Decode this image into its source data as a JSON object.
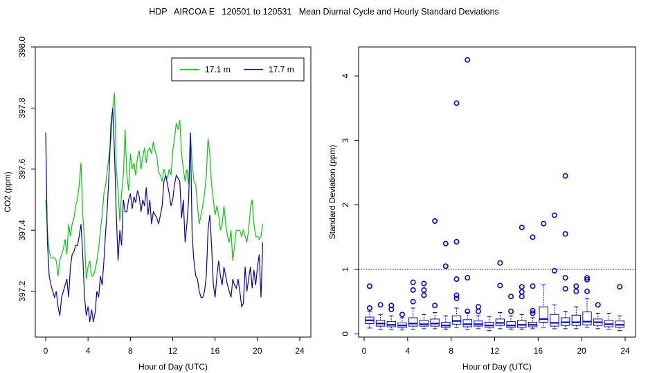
{
  "figure": {
    "title": "HDP   AIRCOA E   120501 to 120531   Mean Diurnal Cycle and Hourly Standard Deviations"
  },
  "colors": {
    "series_17_1": "#00cc00",
    "series_17_7": "#0000cc",
    "box": "#0000ff",
    "axis": "#000000"
  },
  "chart_data": [
    {
      "type": "line",
      "title": "",
      "xlabel": "Hour of Day (UTC)",
      "ylabel": "CO2 (ppm)",
      "xlim": [
        0,
        24
      ],
      "ylim": [
        397.05,
        398.0
      ],
      "xticks": [
        0,
        4,
        8,
        12,
        16,
        20,
        24
      ],
      "yticks": [
        397.2,
        397.4,
        397.6,
        397.8,
        398.0
      ],
      "ytick_labels": [
        "397.2",
        "397.4",
        "397.6",
        "397.8",
        "398.0"
      ],
      "legend": {
        "position": "top-right",
        "entries": [
          "17.1 m",
          "17.7 m"
        ]
      },
      "x_step": 0.1667,
      "series": [
        {
          "name": "17.1 m",
          "color": "#00cc00",
          "values": [
            397.5,
            397.4,
            397.33,
            397.31,
            397.31,
            397.31,
            397.3,
            397.25,
            397.3,
            397.32,
            397.34,
            397.37,
            397.32,
            397.42,
            397.38,
            397.42,
            397.44,
            397.48,
            397.5,
            397.55,
            397.62,
            397.45,
            397.37,
            397.24,
            397.28,
            397.3,
            397.25,
            397.25,
            397.27,
            397.3,
            397.34,
            397.4,
            397.45,
            397.52,
            397.55,
            397.6,
            397.65,
            397.7,
            397.8,
            397.85,
            397.6,
            397.53,
            397.43,
            397.52,
            397.58,
            397.73,
            397.58,
            397.53,
            397.65,
            397.6,
            397.62,
            397.58,
            397.64,
            397.66,
            397.6,
            397.64,
            397.67,
            397.62,
            397.66,
            397.67,
            397.65,
            397.69,
            397.66,
            397.64,
            397.59,
            397.58,
            397.56,
            397.6,
            397.58,
            397.57,
            397.6,
            397.58,
            397.66,
            397.7,
            397.75,
            397.73,
            397.76,
            397.65,
            397.6,
            397.56,
            397.6,
            397.55,
            397.72,
            397.62,
            397.56,
            397.55,
            397.48,
            397.42,
            397.45,
            397.48,
            397.52,
            397.58,
            397.7,
            397.65,
            397.55,
            397.5,
            397.45,
            397.48,
            397.45,
            397.4,
            397.42,
            397.48,
            397.42,
            397.38,
            397.36,
            397.4,
            397.3,
            397.35,
            397.4,
            397.4,
            397.4,
            397.38,
            397.4,
            397.38,
            397.36,
            397.4,
            397.47,
            397.5,
            397.42,
            397.38,
            397.38,
            397.37,
            397.38,
            397.42
          ]
        },
        {
          "name": "17.7 m",
          "color": "#0000cc",
          "values": [
            397.72,
            397.36,
            397.25,
            397.22,
            397.2,
            397.18,
            397.2,
            397.15,
            397.12,
            397.18,
            397.2,
            397.22,
            397.24,
            397.18,
            397.28,
            397.32,
            397.33,
            397.35,
            397.35,
            397.38,
            397.42,
            397.32,
            397.18,
            397.12,
            397.15,
            397.1,
            397.14,
            397.1,
            397.13,
            397.2,
            397.18,
            397.25,
            397.22,
            397.3,
            397.4,
            397.48,
            397.6,
            397.75,
            397.8,
            397.65,
            397.45,
            397.3,
            397.4,
            397.35,
            397.5,
            397.46,
            397.46,
            397.5,
            397.52,
            397.47,
            397.51,
            397.49,
            397.53,
            397.51,
            397.46,
            397.5,
            397.48,
            397.54,
            397.45,
            397.5,
            397.42,
            397.46,
            397.45,
            397.44,
            397.42,
            397.45,
            397.48,
            397.56,
            397.58,
            397.55,
            397.52,
            397.48,
            397.5,
            397.55,
            397.58,
            397.57,
            397.56,
            397.44,
            397.5,
            397.36,
            397.42,
            397.5,
            397.72,
            397.38,
            397.3,
            397.25,
            397.24,
            397.2,
            397.18,
            397.18,
            397.2,
            397.25,
            397.4,
            397.45,
            397.35,
            397.22,
            397.18,
            397.25,
            397.3,
            397.25,
            397.22,
            397.28,
            397.25,
            397.22,
            397.2,
            397.18,
            397.24,
            397.22,
            397.21,
            397.24,
            397.2,
            397.15,
            397.16,
            397.28,
            397.2,
            397.24,
            397.28,
            397.21,
            397.27,
            397.22,
            397.28,
            397.32,
            397.18,
            397.36
          ]
        }
      ]
    },
    {
      "type": "box",
      "title": "",
      "xlabel": "Hour of Day (UTC)",
      "ylabel": "Standard Deviation (ppm)",
      "xlim": [
        0,
        24
      ],
      "ylim": [
        -0.05,
        4.45
      ],
      "xticks": [
        0,
        4,
        8,
        12,
        16,
        20,
        24
      ],
      "yticks": [
        0,
        1,
        2,
        3,
        4
      ],
      "reference_line": 1,
      "boxes": [
        {
          "hour": 0.5,
          "min": 0.09,
          "q1": 0.16,
          "median": 0.21,
          "q3": 0.26,
          "max": 0.35,
          "outliers": [
            0.4,
            0.74
          ]
        },
        {
          "hour": 1.5,
          "min": 0.07,
          "q1": 0.12,
          "median": 0.16,
          "q3": 0.21,
          "max": 0.3,
          "outliers": [
            0.45
          ]
        },
        {
          "hour": 2.5,
          "min": 0.07,
          "q1": 0.11,
          "median": 0.14,
          "q3": 0.19,
          "max": 0.28,
          "outliers": [
            0.38,
            0.44
          ]
        },
        {
          "hour": 3.5,
          "min": 0.06,
          "q1": 0.1,
          "median": 0.13,
          "q3": 0.17,
          "max": 0.25,
          "outliers": [
            0.3
          ]
        },
        {
          "hour": 4.5,
          "min": 0.07,
          "q1": 0.12,
          "median": 0.16,
          "q3": 0.25,
          "max": 0.4,
          "outliers": [
            0.5,
            0.68,
            0.8
          ]
        },
        {
          "hour": 5.5,
          "min": 0.08,
          "q1": 0.12,
          "median": 0.15,
          "q3": 0.21,
          "max": 0.3,
          "outliers": [
            0.6,
            0.68,
            0.78
          ]
        },
        {
          "hour": 6.5,
          "min": 0.08,
          "q1": 0.12,
          "median": 0.16,
          "q3": 0.23,
          "max": 0.33,
          "outliers": [
            0.44,
            1.75
          ]
        },
        {
          "hour": 7.5,
          "min": 0.07,
          "q1": 0.1,
          "median": 0.13,
          "q3": 0.18,
          "max": 0.28,
          "outliers": [
            1.05,
            1.4
          ]
        },
        {
          "hour": 8.5,
          "min": 0.1,
          "q1": 0.15,
          "median": 0.2,
          "q3": 0.28,
          "max": 0.4,
          "outliers": [
            0.55,
            0.6,
            0.85,
            1.43,
            3.58
          ]
        },
        {
          "hour": 9.5,
          "min": 0.07,
          "q1": 0.11,
          "median": 0.15,
          "q3": 0.22,
          "max": 0.33,
          "outliers": [
            0.35,
            0.87,
            4.25
          ]
        },
        {
          "hour": 10.5,
          "min": 0.08,
          "q1": 0.12,
          "median": 0.15,
          "q3": 0.2,
          "max": 0.28,
          "outliers": [
            0.35,
            0.42
          ]
        },
        {
          "hour": 11.5,
          "min": 0.05,
          "q1": 0.1,
          "median": 0.13,
          "q3": 0.18,
          "max": 0.27,
          "outliers": []
        },
        {
          "hour": 12.5,
          "min": 0.08,
          "q1": 0.13,
          "median": 0.17,
          "q3": 0.23,
          "max": 0.33,
          "outliers": [
            0.75,
            1.1
          ]
        },
        {
          "hour": 13.5,
          "min": 0.07,
          "q1": 0.1,
          "median": 0.13,
          "q3": 0.19,
          "max": 0.28,
          "outliers": [
            0.35,
            0.58
          ]
        },
        {
          "hour": 14.5,
          "min": 0.07,
          "q1": 0.1,
          "median": 0.14,
          "q3": 0.21,
          "max": 0.3,
          "outliers": [
            0.58,
            0.65,
            0.73,
            1.65
          ]
        },
        {
          "hour": 15.5,
          "min": 0.08,
          "q1": 0.11,
          "median": 0.14,
          "q3": 0.18,
          "max": 0.25,
          "outliers": [
            0.32,
            0.36,
            0.74,
            1.5
          ]
        },
        {
          "hour": 16.5,
          "min": 0.1,
          "q1": 0.18,
          "median": 0.23,
          "q3": 0.42,
          "max": 0.76,
          "outliers": [
            1.71
          ]
        },
        {
          "hour": 17.5,
          "min": 0.08,
          "q1": 0.12,
          "median": 0.17,
          "q3": 0.3,
          "max": 0.45,
          "outliers": [
            0.98,
            1.84
          ]
        },
        {
          "hour": 18.5,
          "min": 0.08,
          "q1": 0.13,
          "median": 0.18,
          "q3": 0.25,
          "max": 0.35,
          "outliers": [
            0.7,
            0.87,
            1.55,
            2.45
          ]
        },
        {
          "hour": 19.5,
          "min": 0.08,
          "q1": 0.13,
          "median": 0.18,
          "q3": 0.29,
          "max": 0.42,
          "outliers": [
            0.66,
            0.74
          ]
        },
        {
          "hour": 20.5,
          "min": 0.1,
          "q1": 0.14,
          "median": 0.19,
          "q3": 0.34,
          "max": 0.55,
          "outliers": [
            0.66,
            0.84,
            0.87
          ]
        },
        {
          "hour": 21.5,
          "min": 0.08,
          "q1": 0.13,
          "median": 0.18,
          "q3": 0.23,
          "max": 0.32,
          "outliers": [
            0.45
          ]
        },
        {
          "hour": 22.5,
          "min": 0.07,
          "q1": 0.11,
          "median": 0.15,
          "q3": 0.21,
          "max": 0.32,
          "outliers": []
        },
        {
          "hour": 23.5,
          "min": 0.05,
          "q1": 0.1,
          "median": 0.14,
          "q3": 0.2,
          "max": 0.28,
          "outliers": [
            0.73
          ]
        }
      ]
    }
  ]
}
